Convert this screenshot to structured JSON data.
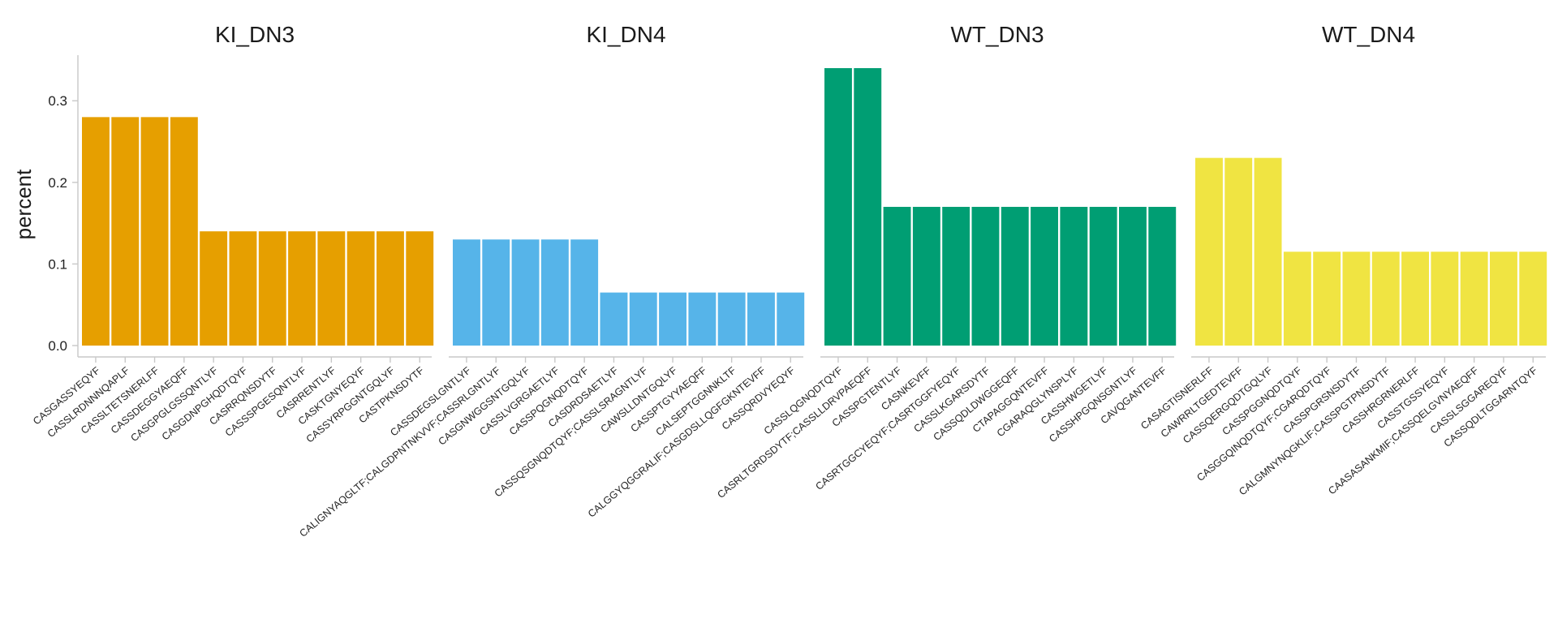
{
  "chart_data": {
    "type": "bar",
    "ylabel": "percent",
    "ylim": [
      0,
      0.34
    ],
    "yticks": [
      "0.0",
      "0.1",
      "0.2",
      "0.3"
    ],
    "ytick_values": [
      0.0,
      0.1,
      0.2,
      0.3
    ],
    "grid": false,
    "panels": [
      {
        "title": "KI_DN3",
        "color": "#E69F00",
        "categories": [
          "CASGASSYEQYF",
          "CASSLRDNNNQAPLF",
          "CASSLTETSNERLFF",
          "CASSDEGGYAEQFF",
          "CASGPGLGSSQNTLYF",
          "CASGDNPGHQDTQYF",
          "CASRRQNSDYTF",
          "CASSSPGESQNTLYF",
          "CASRRENTLYF",
          "CASKTGNYEQYF",
          "CASSYRPGGNTGQLYF",
          "CASTPKNSDYTF"
        ],
        "values": [
          0.28,
          0.28,
          0.28,
          0.28,
          0.14,
          0.14,
          0.14,
          0.14,
          0.14,
          0.14,
          0.14,
          0.14
        ]
      },
      {
        "title": "KI_DN4",
        "color": "#56B4E9",
        "categories": [
          "CASSDEGSLGNTLYF",
          "CALIGNYAQGLTF;CALGDPNTNKVVF;CASSRLGNTLYF",
          "CASGNWGGSNTGQLYF",
          "CASSLVGRGAETLYF",
          "CASSPQGNQDTQYF",
          "CASDRDSAETLYF",
          "CASSQSGNQDTQYF;CASSLSRAGNTLYF",
          "CAWSLLDNTGQLYF",
          "CASSPTGYYAEQFF",
          "CALSEPTGGNNKLTF",
          "CALGGYQGGRALIF;CASGDSLLQGFGKNTEVFF",
          "CASSQRDVYEQYF"
        ],
        "values": [
          0.13,
          0.13,
          0.13,
          0.13,
          0.13,
          0.065,
          0.065,
          0.065,
          0.065,
          0.065,
          0.065,
          0.065
        ]
      },
      {
        "title": "WT_DN3",
        "color": "#009E73",
        "categories": [
          "CASSLQGNQDTQYF",
          "CASRLTGRDSDYTF;CASSLLDRVPAEQFF",
          "CASSPGTENTLYF",
          "CASNKEVFF",
          "CASRTGGCYEQYF;CASRTGGFYEQYF",
          "CASSLKGARSDYTF",
          "CASSQDLDWGGEQFF",
          "CTAPAGGQNTEVFF",
          "CGARAQGLYNSPLYF",
          "CASSHWGETLYF",
          "CASSHPGQNSGNTLYF",
          "CAVQGANTEVFF"
        ],
        "values": [
          0.34,
          0.34,
          0.17,
          0.17,
          0.17,
          0.17,
          0.17,
          0.17,
          0.17,
          0.17,
          0.17,
          0.17
        ]
      },
      {
        "title": "WT_DN4",
        "color": "#F0E442",
        "categories": [
          "CASAGTISNERLFF",
          "CAWRRLTGEDTEVFF",
          "CASSQERGQDTGQLYF",
          "CASSPGGNQDTQYF",
          "CASGGQINQDTQYF;CGARQDTQYF",
          "CASSPGRSNSDYTF",
          "CALGMNYNQGKLIF;CASSPGTPNSDYTF",
          "CASSHRGRNERLFF",
          "CASSTGSSYEQYF",
          "CAASASANKMIF;CASSQELGVNYAEQFF",
          "CASSLSGGAREQYF",
          "CASSQDLTGGARNTQYF"
        ],
        "values": [
          0.23,
          0.23,
          0.23,
          0.115,
          0.115,
          0.115,
          0.115,
          0.115,
          0.115,
          0.115,
          0.115,
          0.115
        ]
      }
    ]
  }
}
